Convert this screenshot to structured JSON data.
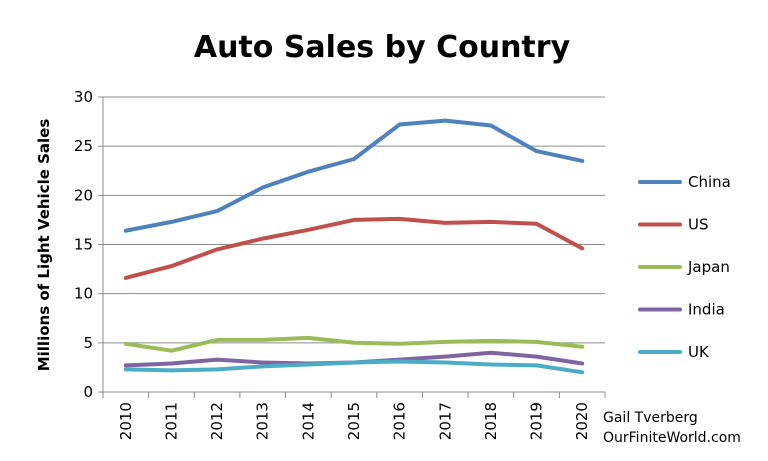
{
  "chart_data": {
    "type": "line",
    "title": "Auto Sales by Country",
    "ylabel": "Millions of Light Vehicle Sales",
    "xlabel": "",
    "x": [
      "2010",
      "2011",
      "2012",
      "2013",
      "2014",
      "2015",
      "2016",
      "2017",
      "2018",
      "2019",
      "2020"
    ],
    "ylim": [
      0,
      30
    ],
    "yticks": [
      0,
      5,
      10,
      15,
      20,
      25,
      30
    ],
    "grid": true,
    "legend_position": "right",
    "series": [
      {
        "name": "China",
        "color": "#4f81bd",
        "values": [
          16.4,
          17.3,
          18.4,
          20.8,
          22.4,
          23.7,
          27.2,
          27.6,
          27.1,
          24.5,
          23.5
        ]
      },
      {
        "name": "US",
        "color": "#c0504d",
        "values": [
          11.6,
          12.8,
          14.5,
          15.6,
          16.5,
          17.5,
          17.6,
          17.2,
          17.3,
          17.1,
          14.6
        ]
      },
      {
        "name": "Japan",
        "color": "#9bbb59",
        "values": [
          4.9,
          4.2,
          5.3,
          5.3,
          5.5,
          5.0,
          4.9,
          5.1,
          5.2,
          5.1,
          4.6
        ]
      },
      {
        "name": "India",
        "color": "#8064a2",
        "values": [
          2.7,
          2.9,
          3.3,
          3.0,
          2.9,
          3.0,
          3.3,
          3.6,
          4.0,
          3.6,
          2.9
        ]
      },
      {
        "name": "UK",
        "color": "#4bacc6",
        "values": [
          2.3,
          2.2,
          2.3,
          2.6,
          2.8,
          3.0,
          3.1,
          3.0,
          2.8,
          2.7,
          2.0
        ]
      }
    ]
  },
  "credit": {
    "line1": "Gail Tverberg",
    "line2": "OurFiniteWorld.com"
  }
}
